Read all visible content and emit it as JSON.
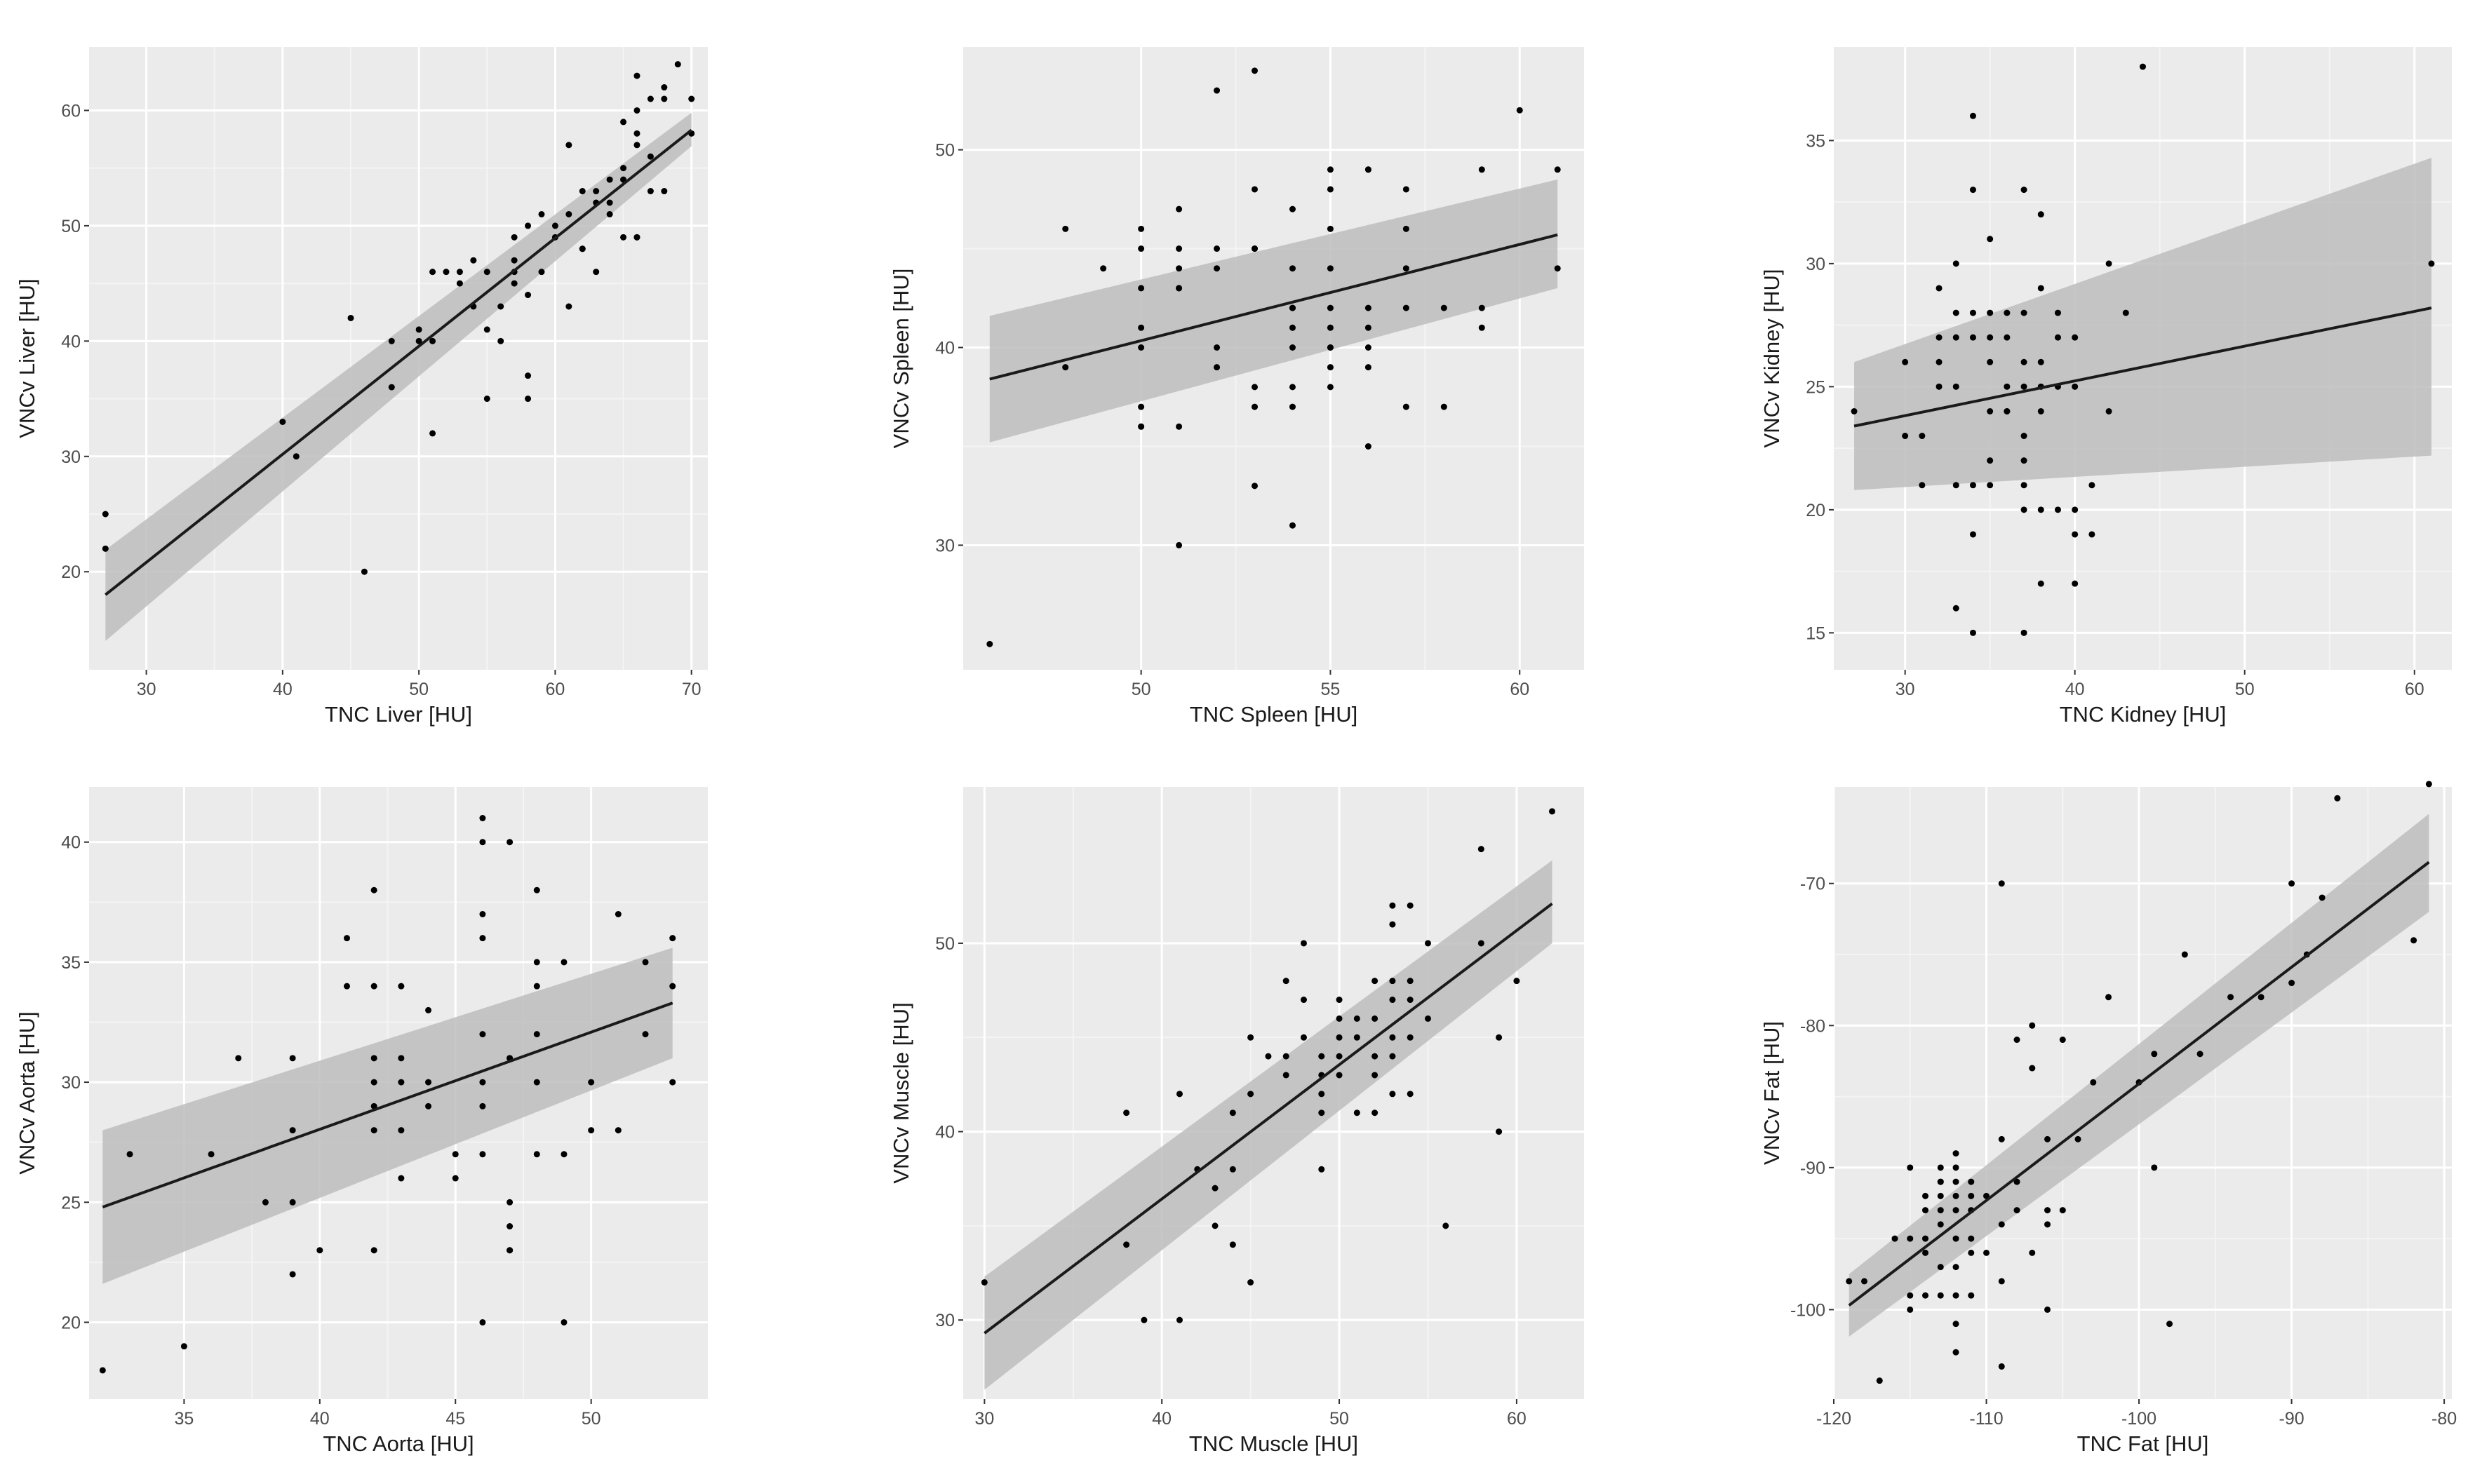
{
  "figure": {
    "panels": [
      {
        "id": "liver"
      },
      {
        "id": "spleen"
      },
      {
        "id": "kidney"
      },
      {
        "id": "aorta"
      },
      {
        "id": "muscle"
      },
      {
        "id": "fat"
      }
    ]
  },
  "colors": {
    "panel_background": "#ebebeb",
    "grid_major": "#ffffff",
    "grid_minor": "#f4f4f4",
    "points": "#000000",
    "fit_line": "#1a1a1a",
    "confidence_band": "#bdbdbd",
    "tick_label": "#4d4d4d",
    "axis_title": "#1a1a1a"
  },
  "chart_data": [
    {
      "type": "scatter",
      "title": "",
      "xlabel": "TNC Liver [HU]",
      "ylabel": "VNCv Liver [HU]",
      "xlim": [
        25.8,
        71.2
      ],
      "ylim": [
        11.5,
        65.5
      ],
      "xticks": [
        30,
        40,
        50,
        60,
        70
      ],
      "yticks": [
        20,
        30,
        40,
        50,
        60
      ],
      "x": [
        27,
        27,
        40,
        41,
        45,
        46,
        48,
        48,
        50,
        50,
        51,
        51,
        51,
        52,
        53,
        53,
        54,
        54,
        55,
        55,
        55,
        56,
        56,
        57,
        57,
        57,
        57,
        58,
        58,
        58,
        58,
        59,
        59,
        60,
        60,
        61,
        61,
        61,
        62,
        62,
        62,
        63,
        63,
        63,
        64,
        64,
        64,
        65,
        65,
        65,
        65,
        66,
        66,
        66,
        66,
        66,
        66,
        67,
        67,
        67,
        68,
        68,
        68,
        69,
        70,
        70
      ],
      "y": [
        25,
        22,
        33,
        30,
        42,
        20,
        40,
        36,
        41,
        40,
        46,
        40,
        32,
        46,
        45,
        46,
        47,
        43,
        35,
        41,
        46,
        43,
        40,
        45,
        47,
        46,
        49,
        50,
        44,
        37,
        35,
        46,
        51,
        49,
        50,
        57,
        51,
        43,
        48,
        53,
        48,
        52,
        46,
        53,
        52,
        54,
        51,
        49,
        54,
        55,
        59,
        63,
        60,
        58,
        57,
        49,
        49,
        61,
        56,
        53,
        61,
        62,
        53,
        64,
        58,
        61
      ],
      "fit": {
        "x": [
          27,
          70
        ],
        "y": [
          18.0,
          58.3
        ],
        "ci_lower": [
          14.0,
          56.9
        ],
        "ci_upper": [
          21.9,
          59.8
        ]
      }
    },
    {
      "type": "scatter",
      "title": "",
      "xlabel": "TNC Spleen [HU]",
      "ylabel": "VNCv Spleen [HU]",
      "xlim": [
        45.3,
        61.7
      ],
      "ylim": [
        23.7,
        55.2
      ],
      "xticks": [
        50,
        55,
        60
      ],
      "yticks": [
        30,
        40,
        50
      ],
      "x": [
        46,
        48,
        48,
        49,
        50,
        50,
        50,
        50,
        50,
        50,
        50,
        50,
        51,
        51,
        51,
        51,
        51,
        51,
        51,
        52,
        52,
        52,
        52,
        52,
        53,
        53,
        53,
        53,
        53,
        53,
        53,
        54,
        54,
        54,
        54,
        54,
        54,
        54,
        54,
        54,
        55,
        55,
        55,
        55,
        55,
        55,
        55,
        55,
        55,
        55,
        56,
        56,
        56,
        56,
        56,
        56,
        56,
        57,
        57,
        57,
        57,
        57,
        58,
        58,
        59,
        59,
        59,
        60,
        61,
        61
      ],
      "y": [
        25,
        46,
        39,
        44,
        46,
        45,
        43,
        41,
        40,
        37,
        36,
        36,
        47,
        45,
        44,
        43,
        43,
        36,
        30,
        53,
        45,
        44,
        40,
        39,
        54,
        48,
        45,
        45,
        38,
        37,
        33,
        47,
        44,
        42,
        42,
        41,
        40,
        38,
        37,
        31,
        49,
        48,
        46,
        44,
        42,
        41,
        40,
        40,
        39,
        38,
        49,
        49,
        42,
        41,
        40,
        39,
        35,
        48,
        46,
        44,
        42,
        37,
        37,
        42,
        42,
        41,
        49,
        52,
        49,
        44
      ],
      "fit": {
        "x": [
          46,
          61
        ],
        "y": [
          38.4,
          45.7
        ],
        "ci_lower": [
          35.2,
          43.0
        ],
        "ci_upper": [
          41.6,
          48.5
        ]
      }
    },
    {
      "type": "scatter",
      "title": "",
      "xlabel": "TNC Kidney [HU]",
      "ylabel": "VNCv Kidney [HU]",
      "xlim": [
        25.8,
        62.2
      ],
      "ylim": [
        13.5,
        38.8
      ],
      "xticks": [
        30,
        40,
        50,
        60
      ],
      "yticks": [
        15,
        20,
        25,
        30,
        35
      ],
      "x": [
        27,
        30,
        30,
        31,
        31,
        32,
        32,
        32,
        32,
        33,
        33,
        33,
        33,
        33,
        33,
        34,
        34,
        34,
        34,
        34,
        34,
        34,
        35,
        35,
        35,
        35,
        35,
        35,
        35,
        36,
        36,
        36,
        36,
        36,
        37,
        37,
        37,
        37,
        37,
        37,
        37,
        37,
        37,
        38,
        38,
        38,
        38,
        38,
        38,
        38,
        39,
        39,
        39,
        39,
        40,
        40,
        40,
        40,
        40,
        41,
        41,
        42,
        42,
        43,
        44,
        61
      ],
      "y": [
        24,
        26,
        23,
        23,
        21,
        29,
        27,
        26,
        25,
        30,
        28,
        27,
        25,
        21,
        16,
        36,
        33,
        28,
        27,
        21,
        19,
        15,
        31,
        28,
        27,
        24,
        22,
        21,
        26,
        28,
        27,
        25,
        24,
        24,
        33,
        28,
        26,
        25,
        23,
        22,
        21,
        20,
        15,
        32,
        29,
        26,
        25,
        24,
        20,
        17,
        28,
        27,
        25,
        20,
        27,
        25,
        20,
        19,
        17,
        21,
        19,
        30,
        24,
        28,
        38,
        30
      ],
      "fit": {
        "x": [
          27,
          61
        ],
        "y": [
          23.4,
          28.2
        ],
        "ci_lower": [
          20.8,
          22.2
        ],
        "ci_upper": [
          26.0,
          34.3
        ]
      }
    },
    {
      "type": "scatter",
      "title": "",
      "xlabel": "TNC Aorta [HU]",
      "ylabel": "VNCv Aorta [HU]",
      "xlim": [
        31.5,
        54.3
      ],
      "ylim": [
        16.8,
        42.3
      ],
      "xticks": [
        35,
        40,
        45,
        50
      ],
      "yticks": [
        20,
        25,
        30,
        35,
        40
      ],
      "x": [
        32,
        33,
        35,
        36,
        37,
        38,
        39,
        39,
        39,
        39,
        40,
        41,
        41,
        42,
        42,
        42,
        42,
        42,
        42,
        42,
        43,
        43,
        43,
        43,
        43,
        44,
        44,
        44,
        45,
        45,
        46,
        46,
        46,
        46,
        46,
        46,
        46,
        46,
        46,
        47,
        47,
        47,
        47,
        47,
        47,
        47,
        48,
        48,
        48,
        48,
        48,
        48,
        49,
        49,
        49,
        50,
        50,
        51,
        51,
        52,
        52,
        53,
        53,
        53
      ],
      "y": [
        18,
        27,
        19,
        27,
        31,
        25,
        31,
        28,
        25,
        22,
        23,
        36,
        34,
        38,
        34,
        31,
        30,
        29,
        28,
        23,
        34,
        31,
        30,
        28,
        26,
        33,
        30,
        29,
        27,
        26,
        41,
        40,
        37,
        36,
        32,
        30,
        29,
        27,
        20,
        40,
        31,
        25,
        24,
        23,
        23,
        31,
        38,
        35,
        34,
        32,
        30,
        27,
        35,
        27,
        20,
        30,
        28,
        37,
        28,
        35,
        32,
        36,
        34,
        30
      ],
      "fit": {
        "x": [
          32,
          53
        ],
        "y": [
          24.8,
          33.3
        ],
        "ci_lower": [
          21.6,
          31.0
        ],
        "ci_upper": [
          28.0,
          35.6
        ]
      }
    },
    {
      "type": "scatter",
      "title": "",
      "xlabel": "TNC Muscle [HU]",
      "ylabel": "VNCv Muscle [HU]",
      "xlim": [
        28.8,
        63.8
      ],
      "ylim": [
        25.8,
        58.3
      ],
      "xticks": [
        30,
        40,
        50,
        60
      ],
      "yticks": [
        30,
        40,
        50
      ],
      "x": [
        30,
        38,
        38,
        39,
        41,
        41,
        42,
        43,
        43,
        44,
        44,
        44,
        45,
        45,
        45,
        46,
        47,
        47,
        47,
        48,
        48,
        48,
        49,
        49,
        49,
        49,
        49,
        50,
        50,
        50,
        50,
        50,
        51,
        51,
        51,
        52,
        52,
        52,
        52,
        52,
        53,
        53,
        53,
        53,
        53,
        53,
        53,
        54,
        54,
        54,
        54,
        54,
        55,
        55,
        56,
        58,
        58,
        59,
        59,
        60,
        62
      ],
      "y": [
        32,
        41,
        34,
        30,
        42,
        30,
        38,
        37,
        35,
        41,
        38,
        34,
        45,
        42,
        32,
        44,
        48,
        44,
        43,
        50,
        47,
        45,
        44,
        43,
        42,
        41,
        38,
        46,
        47,
        45,
        44,
        43,
        46,
        45,
        41,
        46,
        48,
        44,
        43,
        41,
        52,
        51,
        48,
        47,
        45,
        44,
        42,
        52,
        48,
        45,
        47,
        42,
        50,
        46,
        35,
        55,
        50,
        45,
        40,
        48,
        57
      ],
      "fit": {
        "x": [
          30,
          62
        ],
        "y": [
          29.3,
          52.1
        ],
        "ci_lower": [
          26.3,
          50.0
        ],
        "ci_upper": [
          32.3,
          54.4
        ]
      }
    },
    {
      "type": "scatter",
      "title": "",
      "xlabel": "TNC Fat [HU]",
      "ylabel": "VNCv Fat [HU]",
      "xlim": [
        -120.0,
        -79.5
      ],
      "ylim": [
        -106.3,
        -63.2
      ],
      "xticks": [
        -120,
        -110,
        -100,
        -90,
        -80
      ],
      "yticks": [
        -100,
        -90,
        -80,
        -70
      ],
      "x": [
        -119,
        -118,
        -117,
        -116,
        -115,
        -115,
        -115,
        -115,
        -114,
        -114,
        -114,
        -114,
        -114,
        -113,
        -113,
        -113,
        -113,
        -113,
        -113,
        -113,
        -113,
        -112,
        -112,
        -112,
        -112,
        -112,
        -112,
        -112,
        -112,
        -112,
        -112,
        -111,
        -111,
        -111,
        -111,
        -111,
        -111,
        -110,
        -110,
        -109,
        -109,
        -109,
        -109,
        -109,
        -108,
        -108,
        -108,
        -107,
        -107,
        -107,
        -106,
        -106,
        -106,
        -106,
        -105,
        -105,
        -104,
        -103,
        -102,
        -100,
        -99,
        -99,
        -98,
        -97,
        -96,
        -94,
        -92,
        -90,
        -90,
        -89,
        -88,
        -87,
        -82,
        -81
      ],
      "y": [
        -98,
        -98,
        -105,
        -95,
        -100,
        -99,
        -95,
        -90,
        -99,
        -96,
        -95,
        -93,
        -92,
        -99,
        -97,
        -93,
        -92,
        -91,
        -91,
        -90,
        -94,
        -103,
        -101,
        -99,
        -97,
        -95,
        -93,
        -92,
        -91,
        -90,
        -89,
        -99,
        -96,
        -95,
        -93,
        -92,
        -91,
        -96,
        -92,
        -104,
        -98,
        -94,
        -88,
        -70,
        -93,
        -91,
        -81,
        -96,
        -83,
        -80,
        -100,
        -94,
        -93,
        -88,
        -93,
        -81,
        -88,
        -84,
        -78,
        -84,
        -90,
        -82,
        -101,
        -75,
        -82,
        -78,
        -78,
        -77,
        -70,
        -75,
        -71,
        -64,
        -74,
        -63
      ],
      "fit": {
        "x": [
          -119,
          -81
        ],
        "y": [
          -99.7,
          -68.5
        ],
        "ci_lower": [
          -101.9,
          -72.0
        ],
        "ci_upper": [
          -97.5,
          -65.1
        ]
      }
    }
  ]
}
